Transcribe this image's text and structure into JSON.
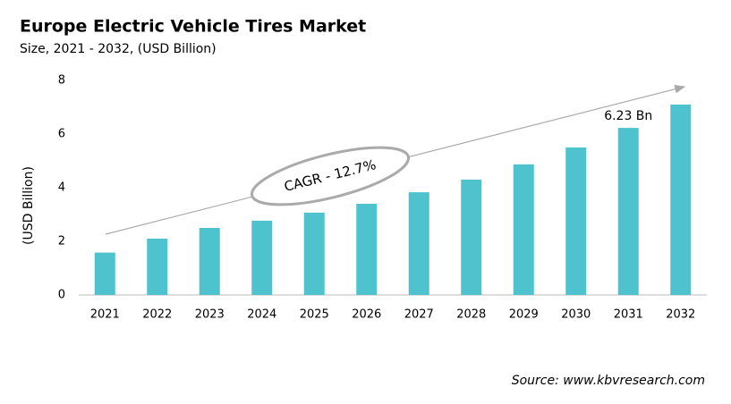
{
  "chart_data": {
    "type": "bar",
    "title": "Europe Electric Vehicle Tires Market",
    "subtitle": "Size, 2021 - 2032, (USD Billion)",
    "ylabel": "(USD Billion)",
    "categories": [
      "2021",
      "2022",
      "2023",
      "2024",
      "2025",
      "2026",
      "2027",
      "2028",
      "2029",
      "2030",
      "2031",
      "2032"
    ],
    "values": [
      1.58,
      2.1,
      2.5,
      2.77,
      3.07,
      3.4,
      3.83,
      4.3,
      4.87,
      5.5,
      6.23,
      7.1
    ],
    "value_labels": [
      null,
      null,
      null,
      null,
      null,
      null,
      null,
      null,
      null,
      null,
      "6.23 Bn",
      null
    ],
    "color": "#4fc3cd",
    "ylim": [
      0,
      8
    ],
    "yticks": [
      0,
      2,
      4,
      6,
      8
    ],
    "grid": false,
    "annotation": "CAGR - 12.7%",
    "source": "Source: www.kbvresearch.com"
  }
}
